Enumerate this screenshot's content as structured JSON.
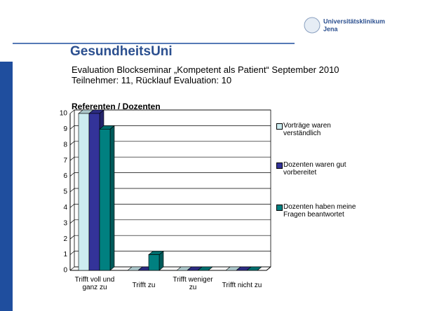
{
  "slide": {
    "logo": "GesundheitsUni",
    "institution": [
      "Universitätsklinikum",
      "Jena"
    ],
    "lines": [
      "Evaluation Blockseminar „Kompetent als Patient“ September 2010",
      "Teilnehmer: 11, Rücklauf Evaluation: 10"
    ]
  },
  "chart_data": {
    "type": "bar",
    "title": "Referenten / Dozenten",
    "categories": [
      "Trifft voll und ganz zu",
      "Trifft zu",
      "Trifft weniger zu",
      "Trifft nicht zu"
    ],
    "series": [
      {
        "name": "Vorträge waren verständlich",
        "color": "#ccecf0",
        "values": [
          10,
          0,
          0,
          0
        ]
      },
      {
        "name": "Dozenten waren gut vorbereitet",
        "color": "#333399",
        "values": [
          10,
          0,
          0,
          0
        ]
      },
      {
        "name": "Dozenten haben meine Fragen beantwortet",
        "color": "#008080",
        "values": [
          9,
          1,
          0,
          0
        ]
      }
    ],
    "ylim": [
      0,
      10
    ],
    "yticks": [
      0,
      1,
      2,
      3,
      4,
      5,
      6,
      7,
      8,
      9,
      10
    ],
    "grid": true,
    "legend": "right"
  }
}
